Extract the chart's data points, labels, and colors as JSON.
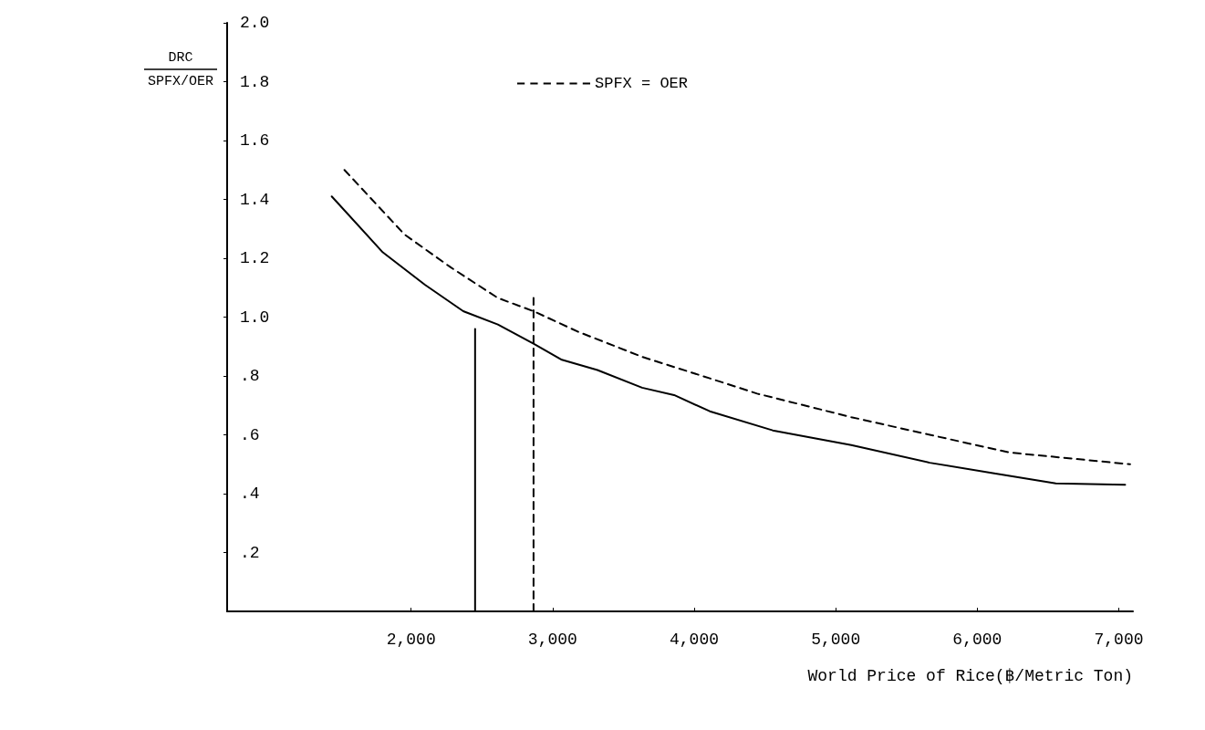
{
  "chart_data": {
    "type": "line",
    "xlabel": "World Price of Rice(฿/Metric Ton)",
    "ylabel": "DRC\nSPFX/OER",
    "xlim": [
      700,
      7100
    ],
    "xticks": [
      {
        "value": 2000,
        "label": "2,000"
      },
      {
        "value": 3000,
        "label": "3,000"
      },
      {
        "value": 4000,
        "label": "4,000"
      },
      {
        "value": 5000,
        "label": "5,000"
      },
      {
        "value": 6000,
        "label": "6,000"
      },
      {
        "value": 7000,
        "label": "7,000"
      }
    ],
    "ylim": [
      0,
      2.0
    ],
    "yticks": [
      {
        "value": 0.2,
        "label": ".2"
      },
      {
        "value": 0.4,
        "label": ".4"
      },
      {
        "value": 0.6,
        "label": ".6"
      },
      {
        "value": 0.8,
        "label": ".8"
      },
      {
        "value": 1.0,
        "label": "1.0"
      },
      {
        "value": 1.2,
        "label": "1.2"
      },
      {
        "value": 1.4,
        "label": "1.4"
      },
      {
        "value": 1.6,
        "label": "1.6"
      },
      {
        "value": 1.8,
        "label": "1.8"
      },
      {
        "value": 2.0,
        "label": "2.0"
      }
    ],
    "grid": false,
    "legend": "top",
    "marker": "none",
    "series": [
      {
        "color": "#000000",
        "line_style": "solid",
        "x": [
          1439,
          1800,
          2097,
          2368,
          2613,
          2865,
          3065,
          3316,
          3632,
          3858,
          4110,
          4555,
          5110,
          5665,
          6110,
          6555,
          7045
        ],
        "values": [
          1.41,
          1.22,
          1.11,
          1.02,
          0.975,
          0.91,
          0.855,
          0.82,
          0.76,
          0.735,
          0.68,
          0.615,
          0.565,
          0.505,
          0.47,
          0.435,
          0.43
        ]
      },
      {
        "name": "SPFX = OER",
        "color": "#000000",
        "line_style": "dashed",
        "x": [
          1529,
          1955,
          2277,
          2613,
          2865,
          3181,
          3632,
          4155,
          4445,
          5110,
          5665,
          6226,
          7080
        ],
        "values": [
          1.5,
          1.28,
          1.17,
          1.065,
          1.02,
          0.95,
          0.865,
          0.785,
          0.74,
          0.66,
          0.6,
          0.54,
          0.5
        ]
      },
      {
        "color": "#000000",
        "line_style": "solid",
        "x": [
          2452,
          2452
        ],
        "values": [
          0,
          0.96
        ]
      },
      {
        "color": "#000000",
        "line_style": "dashed",
        "x": [
          2865,
          2865
        ],
        "values": [
          0,
          1.065
        ]
      }
    ]
  }
}
